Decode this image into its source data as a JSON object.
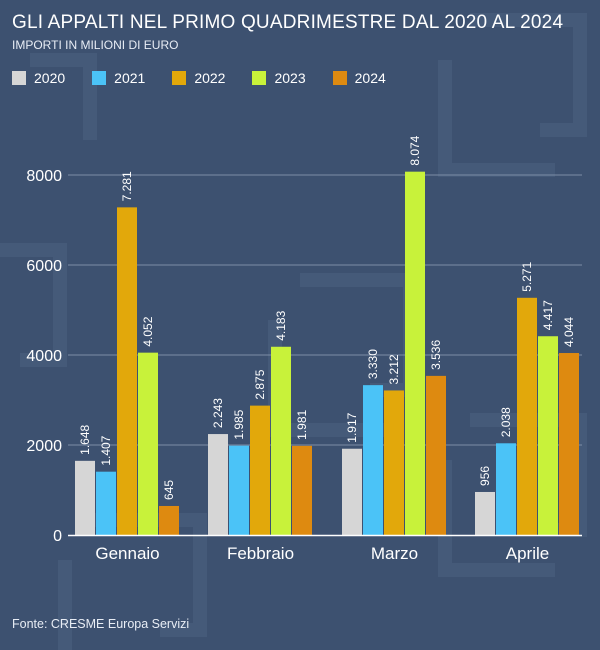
{
  "header": {
    "title": "GLI APPALTI NEL PRIMO QUADRIMESTRE DAL 2020 AL 2024",
    "subtitle": "IMPORTI IN MILIONI DI EURO"
  },
  "footer": {
    "source": "Fonte: CRESME Europa Servizi"
  },
  "colors": {
    "background": "#3d5170",
    "grid": "#7d8da6",
    "2020": "#d6d6d6",
    "2021": "#4bc3f7",
    "2022": "#e2a80b",
    "2023": "#c8f23a",
    "2024": "#de8a10"
  },
  "chart_data": {
    "type": "bar",
    "title": "GLI APPALTI NEL PRIMO QUADRIMESTRE DAL 2020 AL 2024",
    "subtitle": "IMPORTI IN MILIONI DI EURO",
    "categories": [
      "Gennaio",
      "Febbraio",
      "Marzo",
      "Aprile"
    ],
    "series": [
      {
        "name": "2020",
        "color": "#d6d6d6",
        "values": [
          1648,
          2243,
          1917,
          956
        ],
        "labels": [
          "1.648",
          "2.243",
          "1.917",
          "956"
        ]
      },
      {
        "name": "2021",
        "color": "#4bc3f7",
        "values": [
          1407,
          1985,
          3330,
          2038
        ],
        "labels": [
          "1.407",
          "1.985",
          "3.330",
          "2.038"
        ]
      },
      {
        "name": "2022",
        "color": "#e2a80b",
        "values": [
          7281,
          2875,
          3212,
          5271
        ],
        "labels": [
          "7.281",
          "2.875",
          "3.212",
          "5.271"
        ]
      },
      {
        "name": "2023",
        "color": "#c8f23a",
        "values": [
          4052,
          4183,
          8074,
          4417
        ],
        "labels": [
          "4.052",
          "4.183",
          "8.074",
          "4.417"
        ]
      },
      {
        "name": "2024",
        "color": "#de8a10",
        "values": [
          645,
          1981,
          3536,
          4044
        ],
        "labels": [
          "645",
          "1.981",
          "3.536",
          "4.044"
        ]
      }
    ],
    "yticks": [
      0,
      2000,
      4000,
      6000,
      8000
    ],
    "ytick_labels": [
      "0",
      "2000",
      "4000",
      "6000",
      "8000"
    ],
    "ylim": [
      0,
      8800
    ],
    "grid": true,
    "legend": "top-left",
    "data_labels": "rotated-vertical"
  }
}
